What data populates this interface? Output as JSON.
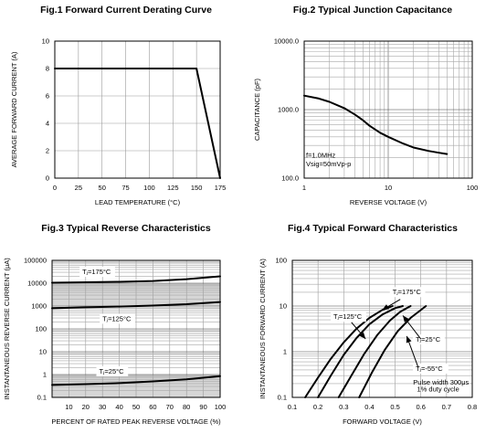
{
  "chart_data": [
    {
      "type": "line",
      "title": "Fig.1 Forward Current Derating Curve",
      "xlabel": "LEAD TEMPERATURE (°C)",
      "ylabel": "AVERAGE FORWARD CURRENT (A)",
      "xlim": [
        0,
        175
      ],
      "ylim": [
        0,
        10
      ],
      "xscale": "linear",
      "yscale": "linear",
      "xticks": [
        0,
        25,
        50,
        75,
        100,
        125,
        150,
        175
      ],
      "yticks": [
        0,
        2,
        4,
        6,
        8,
        10
      ],
      "grid": true,
      "series": [
        {
          "x": [
            0,
            150,
            175
          ],
          "y": [
            8,
            8,
            0
          ]
        }
      ],
      "annotations": []
    },
    {
      "type": "line",
      "title": "Fig.2 Typical Junction Capacitance",
      "xlabel": "REVERSE VOLTAGE (V)",
      "ylabel": "CAPACITANCE (pF)",
      "xlim": [
        1,
        100
      ],
      "ylim": [
        100,
        10000
      ],
      "xscale": "log",
      "yscale": "log",
      "xticks": [
        1,
        10,
        100
      ],
      "xtick_labels": [
        "1",
        "10",
        "100"
      ],
      "yticks": [
        100,
        1000,
        10000
      ],
      "ytick_labels": [
        "100.0",
        "1000.0",
        "10000.0"
      ],
      "grid": true,
      "series": [
        {
          "x": [
            1,
            1.5,
            2,
            3,
            4,
            5,
            6,
            8,
            10,
            15,
            20,
            30,
            40,
            50
          ],
          "y": [
            1600,
            1450,
            1300,
            1050,
            850,
            700,
            580,
            460,
            400,
            320,
            280,
            250,
            235,
            225
          ]
        }
      ],
      "annotations": [
        {
          "text": "f=1.0MHz",
          "x": 1.05,
          "y": 200
        },
        {
          "text": "Vsig=50mVp-p",
          "x": 1.05,
          "y": 150
        }
      ]
    },
    {
      "type": "line",
      "title": "Fig.3 Typical Reverse Characteristics",
      "xlabel": "PERCENT OF RATED PEAK REVERSE VOLTAGE (%)",
      "ylabel": "INSTANTANEOUS REVERSE CURRENT (μA)",
      "xlim": [
        0,
        100
      ],
      "ylim": [
        0.1,
        100000
      ],
      "xscale": "linear",
      "yscale": "log",
      "xticks": [
        10,
        20,
        30,
        40,
        50,
        60,
        70,
        80,
        90,
        100
      ],
      "yticks": [
        0.1,
        1,
        10,
        100,
        1000,
        10000,
        100000
      ],
      "ytick_labels": [
        "0.1",
        "1",
        "10",
        "100",
        "1000",
        "10000",
        "100000"
      ],
      "grid": true,
      "series": [
        {
          "x": [
            0,
            20,
            40,
            60,
            80,
            100
          ],
          "y": [
            10500,
            11000,
            11500,
            12500,
            15000,
            20000
          ]
        },
        {
          "x": [
            0,
            20,
            40,
            60,
            80,
            100
          ],
          "y": [
            800,
            880,
            950,
            1050,
            1200,
            1500
          ]
        },
        {
          "x": [
            0,
            20,
            40,
            60,
            80,
            100
          ],
          "y": [
            0.35,
            0.38,
            0.42,
            0.5,
            0.62,
            0.85
          ]
        }
      ],
      "annotations": [
        {
          "text": "Tⱼ=175°C",
          "x": 18,
          "y": 25000
        },
        {
          "text": "Tⱼ=125°C",
          "x": 30,
          "y": 220
        },
        {
          "text": "Tⱼ=25°C",
          "x": 28,
          "y": 1.1
        }
      ]
    },
    {
      "type": "line",
      "title": "Fig.4 Typical Forward Characteristics",
      "xlabel": "FORWARD VOLTAGE (V)",
      "ylabel": "INSTANTANEOUS FORWARD CURRENT (A)",
      "xlim": [
        0.1,
        0.8
      ],
      "ylim": [
        0.1,
        100
      ],
      "xscale": "linear",
      "yscale": "log",
      "xticks": [
        0.1,
        0.2,
        0.3,
        0.4,
        0.5,
        0.6,
        0.7,
        0.8
      ],
      "yticks": [
        0.1,
        1,
        10,
        100
      ],
      "grid": true,
      "series": [
        {
          "x": [
            0.15,
            0.2,
            0.25,
            0.3,
            0.35,
            0.4,
            0.45,
            0.49
          ],
          "y": [
            0.1,
            0.27,
            0.7,
            1.6,
            3.2,
            5.5,
            8.2,
            10
          ]
        },
        {
          "x": [
            0.2,
            0.25,
            0.3,
            0.35,
            0.4,
            0.45,
            0.5,
            0.53
          ],
          "y": [
            0.1,
            0.3,
            0.85,
            2,
            4,
            6.5,
            9,
            10
          ]
        },
        {
          "x": [
            0.28,
            0.33,
            0.38,
            0.43,
            0.48,
            0.52,
            0.56
          ],
          "y": [
            0.1,
            0.3,
            0.9,
            2.3,
            4.8,
            7.5,
            10
          ]
        },
        {
          "x": [
            0.36,
            0.41,
            0.46,
            0.51,
            0.56,
            0.62
          ],
          "y": [
            0.1,
            0.35,
            1.1,
            2.8,
            5.5,
            10
          ]
        }
      ],
      "annotations": [
        {
          "text": "Tⱼ=175°C",
          "x": 0.49,
          "y": 18
        },
        {
          "text": "Tⱼ=125°C",
          "x": 0.26,
          "y": 5.2
        },
        {
          "text": "Tⱼ=25°C",
          "x": 0.58,
          "y": 1.65
        },
        {
          "text": "Tⱼ=-55°C",
          "x": 0.58,
          "y": 0.38
        },
        {
          "text": "Pulse width 300μs",
          "x": 0.57,
          "y": 0.19
        },
        {
          "text": "1% duty cycle",
          "x": 0.585,
          "y": 0.135
        }
      ]
    }
  ]
}
